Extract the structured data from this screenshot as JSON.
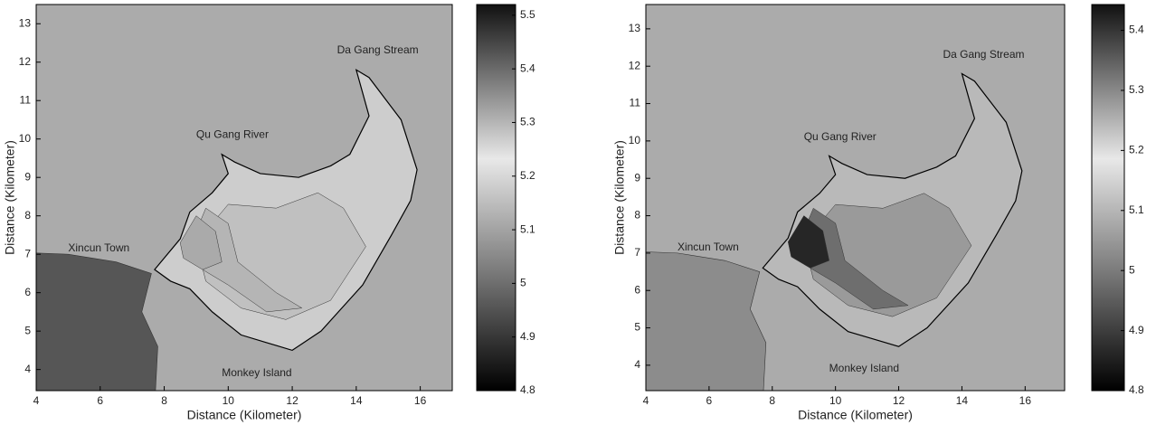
{
  "chart_data": [
    {
      "type": "contour",
      "xlabel": "Distance (Kilometer)",
      "ylabel": "Distance (Kilometer)",
      "xlim": [
        4,
        17
      ],
      "ylim": [
        3.45,
        13.5
      ],
      "xticks": [
        4,
        6,
        8,
        10,
        12,
        14,
        16
      ],
      "yticks": [
        4,
        5,
        6,
        7,
        8,
        9,
        10,
        11,
        12,
        13
      ],
      "colorbar": {
        "lim": [
          4.8,
          5.52
        ],
        "ticks": [
          4.8,
          4.9,
          5,
          5.1,
          5.2,
          5.3,
          5.4,
          5.5
        ]
      },
      "annotations": [
        "Da Gang Stream",
        "Qu Gang River",
        "Xincun Town",
        "Monkey Island"
      ]
    },
    {
      "type": "contour",
      "xlabel": "Distance (Kilometer)",
      "ylabel": "Distance (Kilometer)",
      "xlim": [
        4,
        17.25
      ],
      "ylim": [
        3.32,
        13.65
      ],
      "xticks": [
        4,
        6,
        8,
        10,
        12,
        14,
        16
      ],
      "yticks": [
        4,
        5,
        6,
        7,
        8,
        9,
        10,
        11,
        12,
        13
      ],
      "colorbar": {
        "lim": [
          4.8,
          5.443
        ],
        "ticks": [
          4.8,
          4.9,
          5,
          5.1,
          5.2,
          5.3,
          5.4
        ]
      },
      "annotations": [
        "Da Gang Stream",
        "Qu Gang River",
        "Xincun Town",
        "Monkey Island"
      ]
    }
  ]
}
